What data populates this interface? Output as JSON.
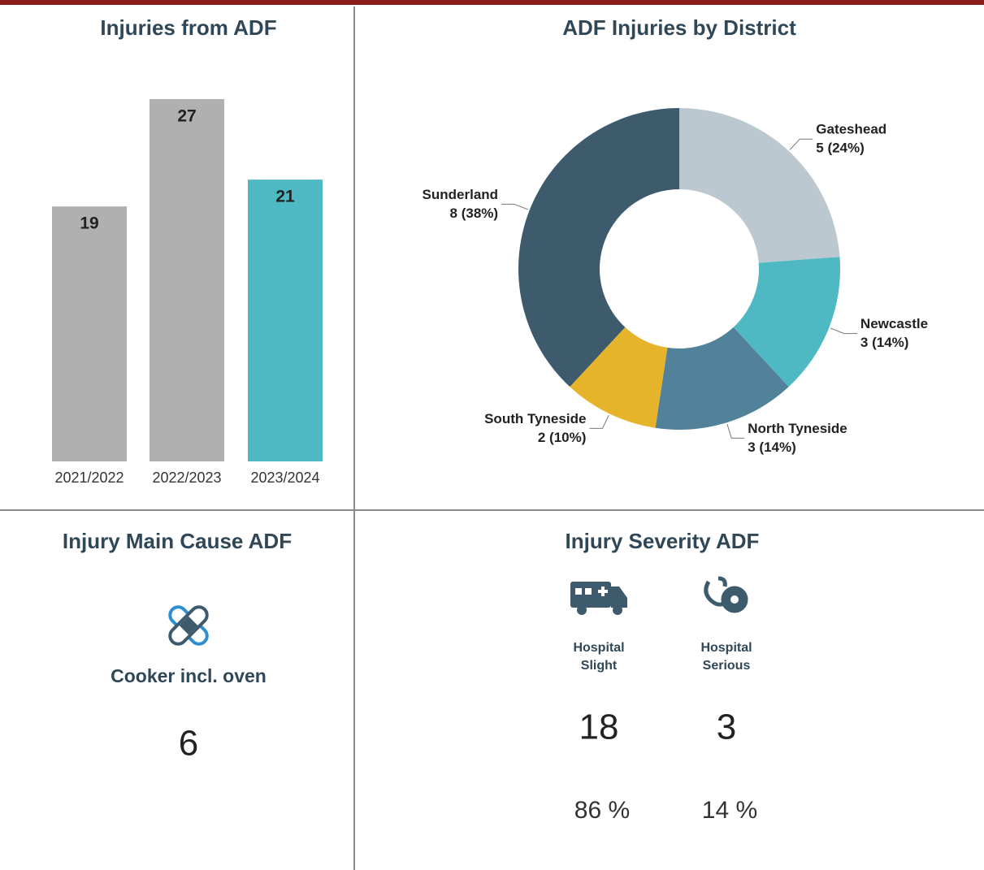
{
  "chart_data": [
    {
      "type": "bar",
      "title": "Injuries from ADF",
      "categories": [
        "2021/2022",
        "2022/2023",
        "2023/2024"
      ],
      "values": [
        19,
        27,
        21
      ],
      "colors": [
        "#b0b0b0",
        "#b0b0b0",
        "#4fb9c3"
      ]
    },
    {
      "type": "donut",
      "title": "ADF Injuries by District",
      "categories": [
        "Gateshead",
        "Newcastle",
        "North Tyneside",
        "South Tyneside",
        "Sunderland"
      ],
      "values": [
        5,
        3,
        3,
        2,
        8
      ],
      "value_labels": [
        "5 (24%)",
        "3 (14%)",
        "3 (14%)",
        "2 (10%)",
        "8 (38%)"
      ],
      "colors": [
        "#bcc8d0",
        "#4fb9c3",
        "#52829a",
        "#e6b42a",
        "#3e5b6e"
      ]
    }
  ],
  "cause_panel": {
    "title": "Injury Main Cause ADF",
    "cause": "Cooker incl. oven",
    "count": 6
  },
  "severity_panel": {
    "title": "Injury Severity ADF",
    "items": [
      {
        "label": [
          "Hospital",
          "Slight"
        ],
        "count": 18,
        "percent": "86 %"
      },
      {
        "label": [
          "Hospital",
          "Serious"
        ],
        "count": 3,
        "percent": "14 %"
      }
    ]
  }
}
